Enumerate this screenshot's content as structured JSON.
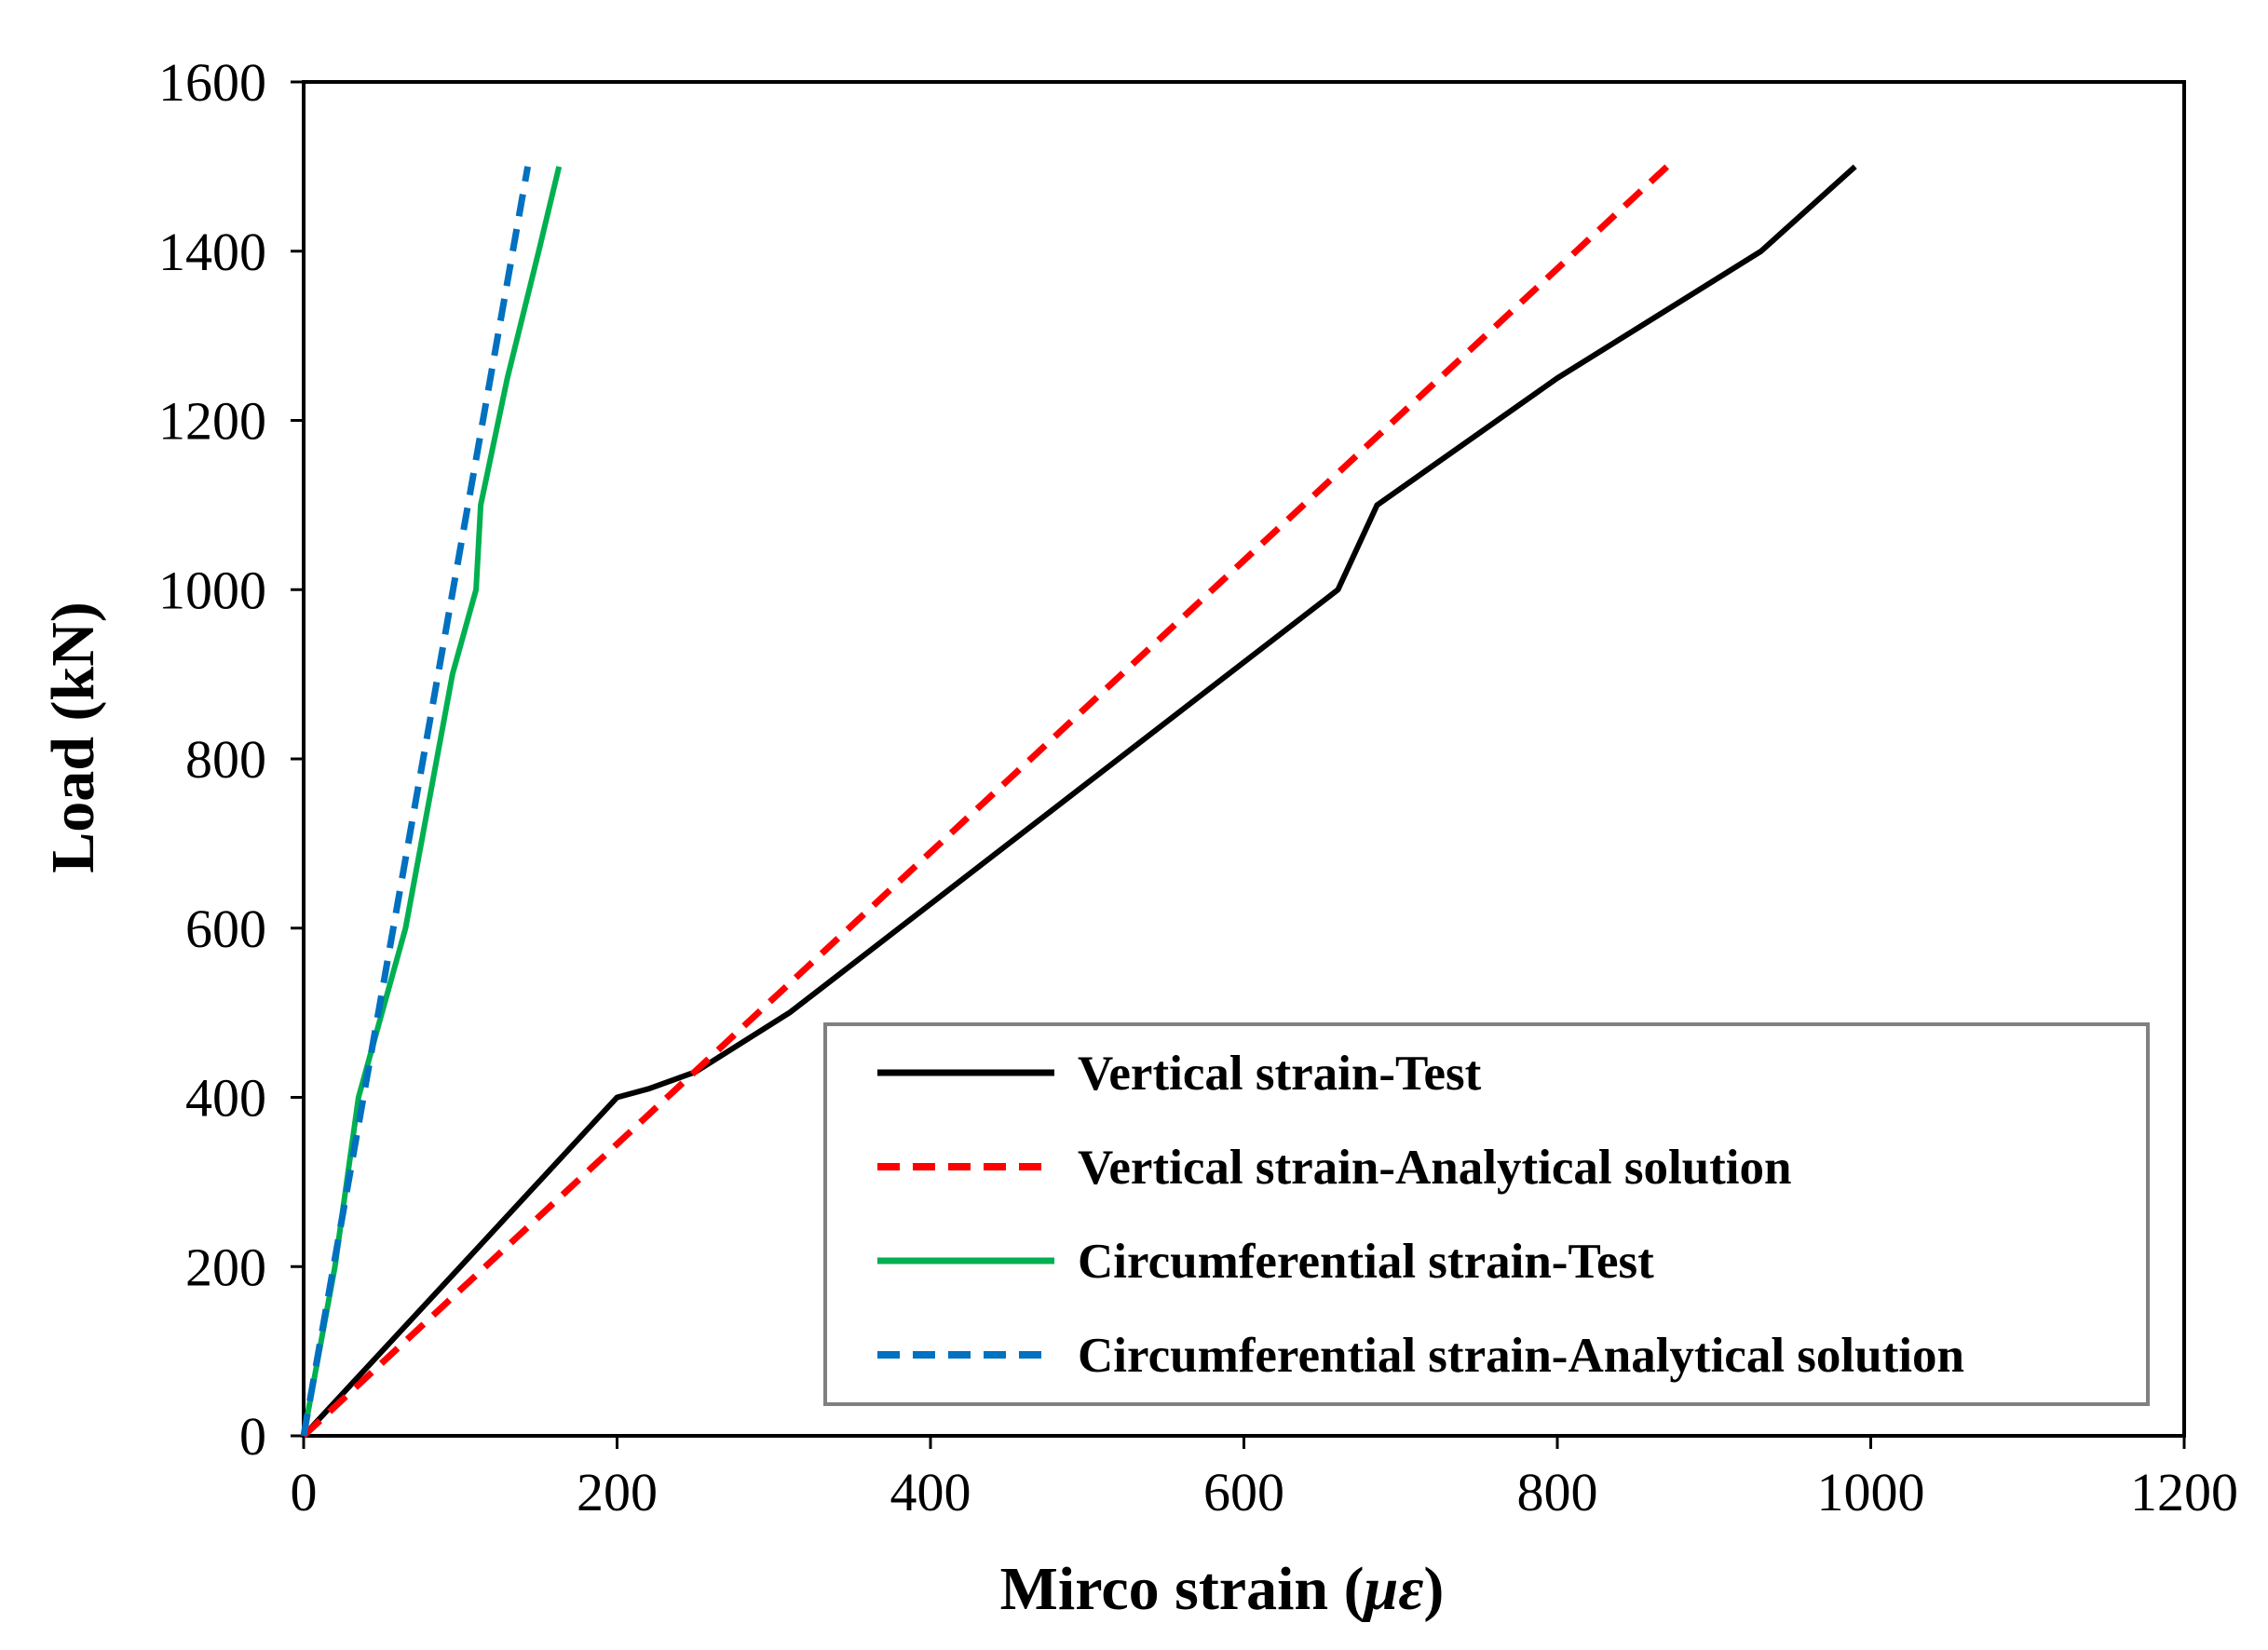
{
  "chart_data": {
    "type": "line",
    "title": "",
    "xlabel": "Mirco strain (",
    "xlabel_symbol": "με",
    "xlabel_close": ")",
    "ylabel": "Load (kN)",
    "xlim": [
      0,
      1200
    ],
    "ylim": [
      0,
      1600
    ],
    "xticks": [
      0,
      200,
      400,
      600,
      800,
      1000,
      1200
    ],
    "yticks": [
      0,
      200,
      400,
      600,
      800,
      1000,
      1200,
      1400,
      1600
    ],
    "grid": false,
    "legend_position": "bottom-right",
    "series": [
      {
        "name": "Vertical strain-Test",
        "color": "#000000",
        "style": "solid",
        "x": [
          0,
          50,
          100,
          150,
          200,
          220,
          250,
          310,
          380,
          450,
          520,
          590,
          660,
          685,
          800,
          930,
          990
        ],
        "y": [
          0,
          100,
          200,
          300,
          400,
          410,
          430,
          500,
          600,
          700,
          800,
          900,
          1000,
          1100,
          1250,
          1400,
          1500
        ]
      },
      {
        "name": "Vertical strain-Analytical solution",
        "color": "#ff0000",
        "style": "dashed",
        "x": [
          0,
          870
        ],
        "y": [
          0,
          1500
        ]
      },
      {
        "name": "Circumferential  strain-Test",
        "color": "#00b050",
        "style": "solid",
        "x": [
          0,
          20,
          35,
          50,
          65,
          80,
          95,
          110,
          113,
          130,
          150,
          163
        ],
        "y": [
          0,
          200,
          400,
          500,
          600,
          750,
          900,
          1000,
          1100,
          1250,
          1400,
          1500
        ]
      },
      {
        "name": "Circumferential  strain-Analytical solution",
        "color": "#0070c0",
        "style": "dashed",
        "x": [
          0,
          143
        ],
        "y": [
          0,
          1500
        ]
      }
    ]
  }
}
